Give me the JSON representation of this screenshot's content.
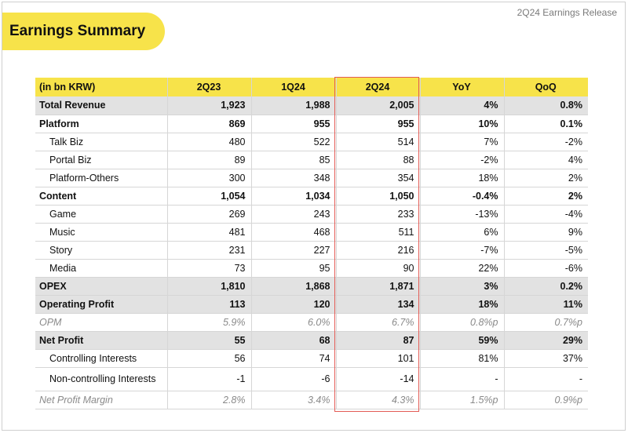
{
  "header": {
    "release_label": "2Q24 Earnings Release"
  },
  "title": "Earnings Summary",
  "table": {
    "columns": [
      "(in bn KRW)",
      "2Q23",
      "1Q24",
      "2Q24",
      "YoY",
      "QoQ"
    ],
    "rows": [
      {
        "label": "Total Revenue",
        "values": [
          "1,923",
          "1,988",
          "2,005",
          "4%",
          "0.8%"
        ]
      },
      {
        "label": "Platform",
        "values": [
          "869",
          "955",
          "955",
          "10%",
          "0.1%"
        ]
      },
      {
        "label": "Talk Biz",
        "values": [
          "480",
          "522",
          "514",
          "7%",
          "-2%"
        ]
      },
      {
        "label": "Portal Biz",
        "values": [
          "89",
          "85",
          "88",
          "-2%",
          "4%"
        ]
      },
      {
        "label": "Platform-Others",
        "values": [
          "300",
          "348",
          "354",
          "18%",
          "2%"
        ]
      },
      {
        "label": "Content",
        "values": [
          "1,054",
          "1,034",
          "1,050",
          "-0.4%",
          "2%"
        ]
      },
      {
        "label": "Game",
        "values": [
          "269",
          "243",
          "233",
          "-13%",
          "-4%"
        ]
      },
      {
        "label": "Music",
        "values": [
          "481",
          "468",
          "511",
          "6%",
          "9%"
        ]
      },
      {
        "label": "Story",
        "values": [
          "231",
          "227",
          "216",
          "-7%",
          "-5%"
        ]
      },
      {
        "label": "Media",
        "values": [
          "73",
          "95",
          "90",
          "22%",
          "-6%"
        ]
      },
      {
        "label": "OPEX",
        "values": [
          "1,810",
          "1,868",
          "1,871",
          "3%",
          "0.2%"
        ]
      },
      {
        "label": "Operating Profit",
        "values": [
          "113",
          "120",
          "134",
          "18%",
          "11%"
        ]
      },
      {
        "label": "OPM",
        "values": [
          "5.9%",
          "6.0%",
          "6.7%",
          "0.8%p",
          "0.7%p"
        ]
      },
      {
        "label": "Net Profit",
        "values": [
          "55",
          "68",
          "87",
          "59%",
          "29%"
        ]
      },
      {
        "label": "Controlling Interests",
        "values": [
          "56",
          "74",
          "101",
          "81%",
          "37%"
        ]
      },
      {
        "label": "Non-controlling Interests",
        "values": [
          "-1",
          "-6",
          "-14",
          "-",
          "-"
        ]
      },
      {
        "label": "Net Profit Margin",
        "values": [
          "2.8%",
          "3.4%",
          "4.3%",
          "1.5%p",
          "0.9%p"
        ]
      }
    ]
  },
  "colors": {
    "accent_yellow": "#f7e34a",
    "highlight_red": "#e35b55",
    "shade_gray": "#e2e2e2"
  }
}
